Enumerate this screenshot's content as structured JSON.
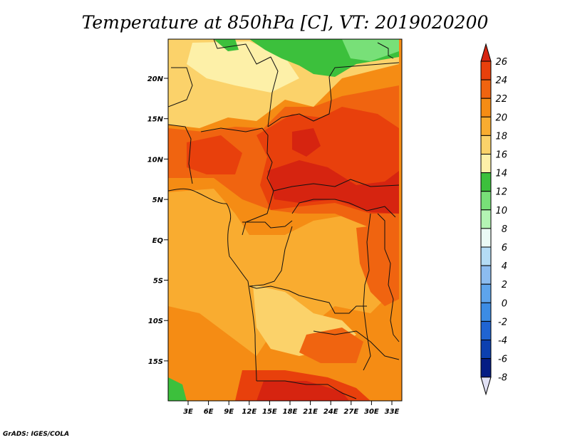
{
  "title": "Temperature at 850hPa [C], VT: 2019020200",
  "credit": "GrADS: IGES/COLA",
  "map": {
    "lat_labels": [
      "20N",
      "15N",
      "10N",
      "5N",
      "EQ",
      "5S",
      "10S",
      "15S"
    ],
    "lon_labels": [
      "3E",
      "6E",
      "9E",
      "12E",
      "15E",
      "18E",
      "21E",
      "24E",
      "27E",
      "30E",
      "33E"
    ]
  },
  "colorbar": {
    "labels": [
      "26",
      "24",
      "22",
      "20",
      "18",
      "16",
      "14",
      "12",
      "10",
      "8",
      "6",
      "4",
      "2",
      "0",
      "-2",
      "-4",
      "-6",
      "-8"
    ],
    "colors": {
      "above_26": "#d62410",
      "24_26": "#e8400c",
      "22_24": "#f06410",
      "20_22": "#f58c14",
      "18_20": "#f9ac30",
      "16_18": "#fbd26a",
      "14_16": "#fdf0a8",
      "12_14": "#3cc03c",
      "10_12": "#78e078",
      "8_10": "#b4f4b4",
      "6_8": "#ebfaf5",
      "4_6": "#b4dcf5",
      "2_4": "#8cbcf0",
      "0_2": "#5ea4ec",
      "m2_0": "#3c8ce4",
      "m4_m2": "#2064d2",
      "m6_m4": "#0c40b0",
      "m8_m6": "#041c84",
      "below_m8": "#e1e1f5"
    }
  }
}
